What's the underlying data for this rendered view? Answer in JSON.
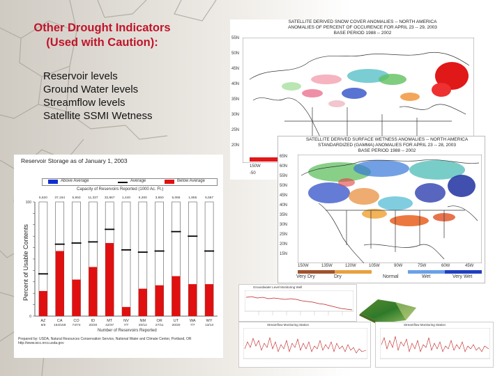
{
  "title_line1": "Other Drought Indicators",
  "title_line2": "(Used with Caution):",
  "bullets": [
    "Reservoir levels",
    "Ground Water levels",
    "Streamflow levels",
    "Satellite SSMI Wetness"
  ],
  "snow_map": {
    "title_line1": "SATELLITE DERIVED SNOW COVER ANOMALIES -- NORTH AMERICA",
    "title_line2": "ANOMALIES OF PERCENT OF OCCURENCE FOR APRIL 23 -- 29, 2003",
    "title_line3": "BASE PERIOD 1988 -- 2002",
    "lat_labels": [
      "55N",
      "50N",
      "45N",
      "40N",
      "35N",
      "30N",
      "25N",
      "20N"
    ],
    "bottom_labels": [
      "150W",
      "15"
    ],
    "colorbar_label": "-50"
  },
  "wetness_map": {
    "title_line1": "SATELLITE DERIVED SURFACE WETNESS ANOMALIES -- NORTH AMERICA",
    "title_line2": "STANDARDIZED (GAMMA) ANOMALIES FOR APRIL 23 -- 28, 2003",
    "title_line3": "BASE PERIOD 1988 -- 2002",
    "lat_labels": [
      "65N",
      "60N",
      "55N",
      "50N",
      "45N",
      "40N",
      "35N",
      "30N",
      "25N",
      "20N",
      "15N"
    ],
    "lon_labels": [
      "150W",
      "135W",
      "120W",
      "105W",
      "90W",
      "75W",
      "60W",
      "45W"
    ],
    "legend_labels": [
      "Very Dry",
      "Dry",
      "Normal",
      "Wet",
      "Very Wet"
    ],
    "legend_colors": [
      "#a0522d",
      "#e8a040",
      "#ffffff",
      "#6aa0e8",
      "#2040c0"
    ]
  },
  "reservoir_chart": {
    "title": "Reservoir Storage as of January 1, 2003",
    "legend": [
      "Above Average",
      "Average",
      "Below Average"
    ],
    "capacity_label": "Capacity of Reservoirs Reported (1000 Ac. Ft.)",
    "ylabel": "Percent of Usable Contents",
    "xlabel": "Number of Reservoirs Reported",
    "footer_line1": "Prepared by: USDA, Natural Resources Conservation Service, National Water and Climate Center, Portland, OR",
    "footer_line2": "http://www.wcc.nrcs.usda.gov"
  },
  "chart_data": {
    "type": "bar",
    "title": "Reservoir Storage as of January 1, 2003",
    "ylabel": "Percent of Usable Contents",
    "xlabel": "Number of Reservoirs Reported",
    "ylim": [
      0,
      100
    ],
    "categories": [
      "AZ",
      "CA",
      "CO",
      "ID",
      "MT",
      "NV",
      "NM",
      "OR",
      "UT",
      "WA",
      "WY"
    ],
    "reservoirs_reported": [
      "8/6",
      "164/159",
      "74/74",
      "20/20",
      "42/37",
      "7/7",
      "20/12",
      "27/11",
      "20/20",
      "7/7",
      "13/13"
    ],
    "capacity": [
      "5,620",
      "37,164",
      "5,953",
      "11,337",
      "32,867",
      "1,440",
      "6,300",
      "3,650",
      "5,066",
      "1,855",
      "5,567"
    ],
    "series": [
      {
        "name": "Below Average",
        "values": [
          22,
          57,
          32,
          43,
          64,
          8,
          24,
          27,
          35,
          28,
          28
        ]
      },
      {
        "name": "Average",
        "values": [
          37,
          63,
          64,
          65,
          76,
          58,
          56,
          57,
          74,
          70,
          57
        ]
      }
    ],
    "legend_position": "top"
  },
  "mini_charts": {
    "top_title": "Groundwater Level Monitoring Well",
    "bottom_left_title": "Streamflow Monitoring Station",
    "bottom_right_title": "Streamflow Monitoring Station"
  },
  "colors": {
    "title_red": "#c0142a",
    "bar_red": "#e01010",
    "above_blue": "#1030d0"
  }
}
